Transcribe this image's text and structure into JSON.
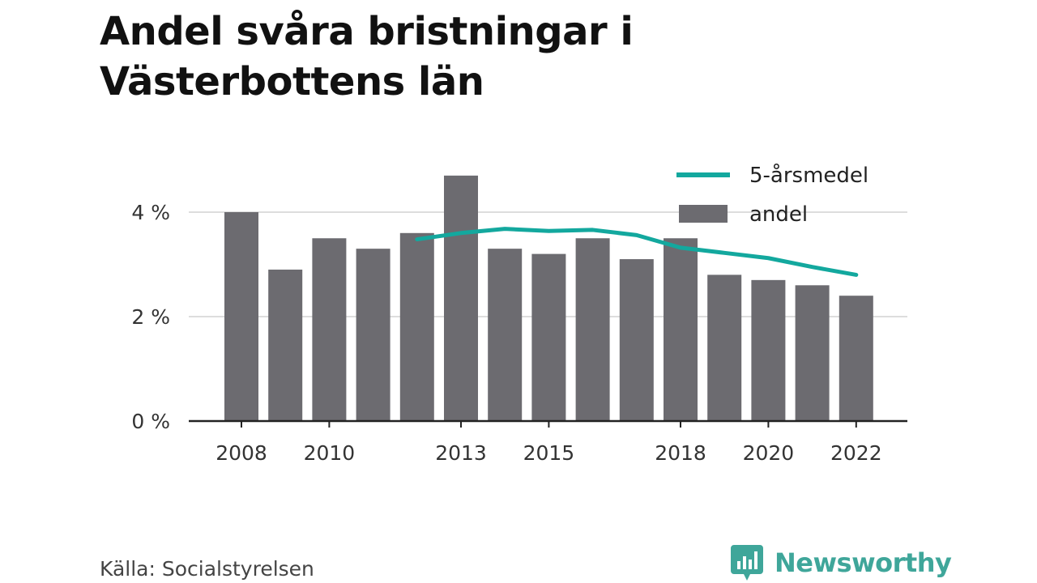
{
  "title_line1": "Andel svåra bristningar i",
  "title_line2": "Västerbottens län",
  "source": "Källa: Socialstyrelsen",
  "brand": "Newsworthy",
  "colors": {
    "bar": "#6c6b70",
    "line": "#13a89e",
    "brand": "#3fa69a",
    "grid": "#dddddd",
    "axis": "#222222"
  },
  "chart_data": {
    "type": "bar",
    "categories": [
      "2008",
      "2009",
      "2010",
      "2011",
      "2012",
      "2013",
      "2014",
      "2015",
      "2016",
      "2017",
      "2018",
      "2019",
      "2020",
      "2021",
      "2022"
    ],
    "x_tick_labels": [
      "2008",
      "2010",
      "2013",
      "2015",
      "2018",
      "2020",
      "2022"
    ],
    "y_ticks": [
      {
        "value": 0,
        "label": "0 %"
      },
      {
        "value": 2,
        "label": "2 %"
      },
      {
        "value": 4,
        "label": "4 %"
      }
    ],
    "ylim": [
      0,
      5.2
    ],
    "grid": true,
    "legend_position": "top-right",
    "series": [
      {
        "name": "andel",
        "type": "bar",
        "values": [
          4.0,
          2.9,
          3.5,
          3.3,
          3.6,
          4.7,
          3.3,
          3.2,
          3.5,
          3.1,
          3.5,
          2.8,
          2.7,
          2.6,
          2.4
        ]
      },
      {
        "name": "5-årsmedel",
        "type": "line",
        "values": [
          null,
          null,
          null,
          null,
          3.48,
          3.6,
          3.68,
          3.64,
          3.66,
          3.56,
          3.32,
          3.22,
          3.12,
          2.95,
          2.8
        ]
      }
    ],
    "legend": [
      {
        "name": "5-årsmedel",
        "symbol": "line"
      },
      {
        "name": "andel",
        "symbol": "bar"
      }
    ]
  }
}
